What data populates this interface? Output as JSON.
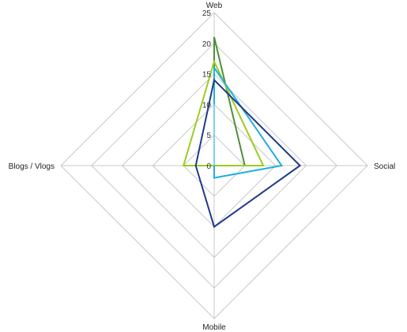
{
  "chart_data": {
    "type": "radar",
    "title": "",
    "categories": [
      "Web",
      "Social",
      "Mobile",
      "Blogs / Vlogs"
    ],
    "rlim": [
      0,
      25
    ],
    "ticks": [
      0,
      5,
      10,
      15,
      20,
      25
    ],
    "grid": true,
    "legend": "none",
    "series": [
      {
        "color": "#4e8f3a",
        "values": [
          21,
          5,
          0,
          0
        ]
      },
      {
        "color": "#9acd1e",
        "values": [
          17,
          8,
          0,
          5
        ]
      },
      {
        "color": "#22aee0",
        "values": [
          16,
          11,
          2,
          0
        ]
      },
      {
        "color": "#1f3a8a",
        "values": [
          14,
          14,
          10,
          3
        ]
      },
      {
        "color": "#7dd3e8",
        "values": [
          10,
          0,
          0,
          0
        ]
      }
    ]
  }
}
